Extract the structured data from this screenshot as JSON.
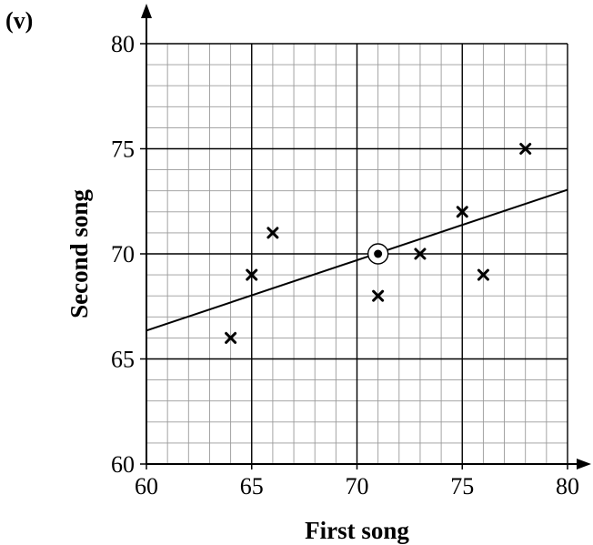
{
  "part_label": "(v)",
  "chart_data": {
    "type": "scatter",
    "xlabel": "First song",
    "ylabel": "Second song",
    "xlim": [
      60,
      80
    ],
    "ylim": [
      60,
      80
    ],
    "x_ticks": [
      60,
      65,
      70,
      75,
      80
    ],
    "y_ticks": [
      60,
      65,
      70,
      75,
      80
    ],
    "minor_grid_step": 1,
    "major_grid_step": 5,
    "grid": true,
    "points": [
      {
        "x": 64,
        "y": 66
      },
      {
        "x": 65,
        "y": 69
      },
      {
        "x": 66,
        "y": 71
      },
      {
        "x": 71,
        "y": 68
      },
      {
        "x": 73,
        "y": 70
      },
      {
        "x": 75,
        "y": 72
      },
      {
        "x": 76,
        "y": 69
      },
      {
        "x": 78,
        "y": 75
      }
    ],
    "mean_point": {
      "x": 71,
      "y": 70
    },
    "line_of_best_fit": {
      "x1": 60,
      "y1": 66.35,
      "x2": 80,
      "y2": 73.05
    },
    "colors": {
      "grid_minor": "#9a9a9a",
      "grid_major": "#000000",
      "marks": "#000000"
    }
  }
}
